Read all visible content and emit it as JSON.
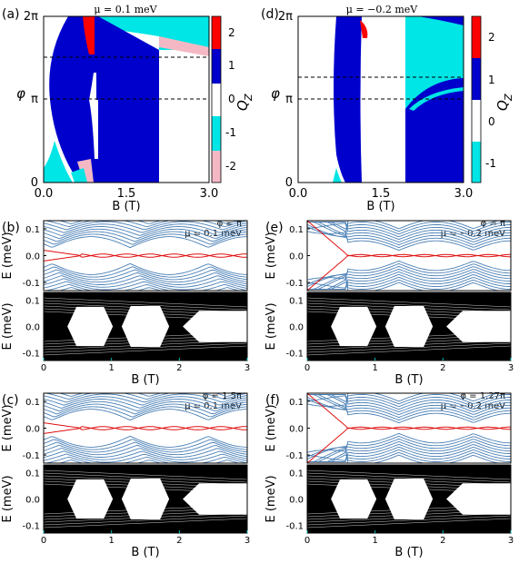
{
  "chart_data": [
    {
      "panel": "(a)",
      "type": "heatmap",
      "title": "μ = 0.1 meV",
      "xlabel": "B (T)",
      "ylabel": "φ",
      "x_ticks": [
        "0.0",
        "1.5",
        "3.0"
      ],
      "y_ticks": [
        "0",
        "π",
        "2π"
      ],
      "xlim": [
        0,
        3
      ],
      "ylim": [
        0,
        6.283
      ],
      "dashed_lines_phi": [
        3.1416,
        4.7124
      ]
    },
    {
      "panel": "(d)",
      "type": "heatmap",
      "title": "μ = −0.2 meV",
      "xlabel": "B (T)",
      "ylabel": "φ",
      "x_ticks": [
        "0.0",
        "1.5",
        "3.0"
      ],
      "y_ticks": [
        "0",
        "π",
        "2π"
      ],
      "xlim": [
        0,
        3
      ],
      "ylim": [
        0,
        6.283
      ],
      "dashed_lines_phi": [
        3.1416,
        3.99
      ]
    },
    {
      "panel": "colorbar-a",
      "type": "heatmap",
      "label": "Q_Z",
      "levels": [
        -2,
        -1,
        0,
        1,
        2
      ],
      "tick_labels": [
        "2",
        "1",
        "0",
        "-1",
        "-2"
      ],
      "colors": [
        "#ff0000",
        "#0000cc",
        "#ffffff",
        "#00e0e0",
        "#f4b8c4"
      ]
    },
    {
      "panel": "colorbar-d",
      "type": "heatmap",
      "label": "Q_Z",
      "levels": [
        -1,
        0,
        1,
        2
      ],
      "tick_labels": [
        "2",
        "1",
        "0",
        "-1"
      ],
      "colors": [
        "#ff0000",
        "#0000cc",
        "#ffffff",
        "#00e0e0"
      ]
    },
    {
      "panel": "(b)",
      "type": "line",
      "annotation": [
        "φ = π",
        "μ = 0.1 meV"
      ],
      "xlabel": "B (T)",
      "ylabel": "E (meV)",
      "xlim": [
        0,
        3
      ],
      "ylim": [
        -0.13,
        0.13
      ],
      "y_ticks": [
        "0.1",
        "0.0",
        "-0.1"
      ],
      "x_ticks": [
        "0",
        "1",
        "2",
        "3"
      ]
    },
    {
      "panel": "(e)",
      "type": "line",
      "annotation": [
        "φ = π",
        "μ = −0.2 meV"
      ],
      "xlabel": "B (T)",
      "ylabel": "E (meV)",
      "xlim": [
        0,
        3
      ],
      "ylim": [
        -0.13,
        0.13
      ],
      "y_ticks": [
        "0.1",
        "0.0",
        "-0.1"
      ],
      "x_ticks": [
        "0",
        "1",
        "2",
        "3"
      ]
    },
    {
      "panel": "(c)",
      "type": "line",
      "annotation": [
        "φ = 1.5π",
        "μ = 0.1 meV"
      ],
      "xlabel": "B (T)",
      "ylabel": "E (meV)",
      "xlim": [
        0,
        3
      ],
      "ylim": [
        -0.13,
        0.13
      ],
      "y_ticks": [
        "0.1",
        "0.0",
        "-0.1"
      ],
      "x_ticks": [
        "0",
        "1",
        "2",
        "3"
      ]
    },
    {
      "panel": "(f)",
      "type": "line",
      "annotation": [
        "φ = 1.27π",
        "μ = −0.2 meV"
      ],
      "xlabel": "B (T)",
      "ylabel": "E (meV)",
      "xlim": [
        0,
        3
      ],
      "ylim": [
        -0.13,
        0.13
      ],
      "y_ticks": [
        "0.1",
        "0.0",
        "-0.1"
      ],
      "x_ticks": [
        "0",
        "1",
        "2",
        "3"
      ]
    }
  ],
  "labels": {
    "a": "(a)",
    "b": "(b)",
    "c": "(c)",
    "d": "(d)",
    "e": "(e)",
    "f": "(f)",
    "mu_a": "μ = 0.1 meV",
    "mu_d": "μ = −0.2 meV",
    "phi": "φ",
    "Bax": "B (T)",
    "Eax": "E (meV)",
    "Qz": "Q",
    "Qz_sub": "Z",
    "ann_b1": "φ = π",
    "ann_b2": "μ = 0.1 meV",
    "ann_e1": "φ = π",
    "ann_e2": "μ = −0.2 meV",
    "ann_c1": "φ = 1.5π",
    "ann_c2": "μ = 0.1 meV",
    "ann_f1": "φ = 1.27π",
    "ann_f2": "μ = −0.2 meV",
    "two_pi": "2π",
    "pi": "π",
    "zero": "0",
    "x00": "0.0",
    "x15": "1.5",
    "x30": "3.0",
    "t0": "0",
    "t1": "1",
    "t2": "2",
    "t3": "3",
    "e01": "0.1",
    "e00": "0.0",
    "em01": "-0.1",
    "cb2": "2",
    "cb1": "1",
    "cb0": "0",
    "cbm1": "-1",
    "cbm2": "-2"
  },
  "colors": {
    "red": "#ff0000",
    "blue": "#0000cc",
    "cyan": "#00e5e5",
    "pink": "#f4b8c4",
    "line_blue": "#4a7fb5",
    "line_red": "#e01010"
  }
}
